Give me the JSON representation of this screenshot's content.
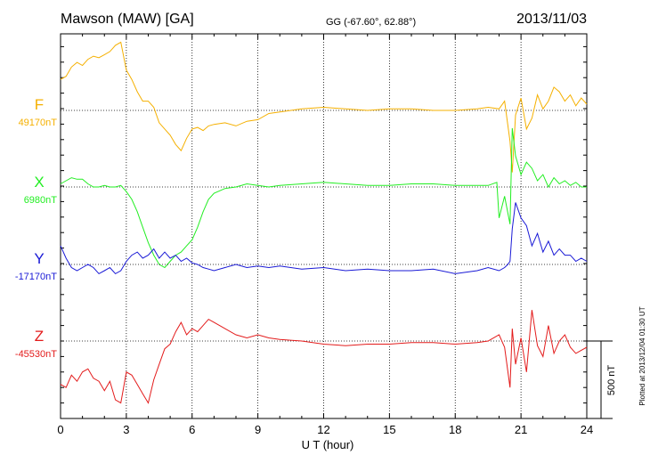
{
  "header": {
    "station": "Mawson (MAW)  [GA]",
    "coords": "GG (-67.60°,  62.88°)",
    "date": "2013/11/03"
  },
  "footer": {
    "plotted": "Plotted at 2013/12/04 01:30 UT",
    "scale_label": "500 nT"
  },
  "chart_data": {
    "type": "line",
    "xlabel": "U T (hour)",
    "xlim": [
      0,
      24
    ],
    "x_ticks": [
      "0",
      "3",
      "6",
      "9",
      "12",
      "15",
      "18",
      "21",
      "24"
    ],
    "grid": true,
    "scale_bar_nT": 500,
    "series": [
      {
        "name": "F",
        "baseline_label": "49170nT",
        "color": "#f5b000",
        "x": [
          0,
          0.25,
          0.5,
          0.75,
          1,
          1.25,
          1.5,
          1.75,
          2,
          2.25,
          2.5,
          2.75,
          3,
          3.25,
          3.5,
          3.75,
          4,
          4.25,
          4.5,
          4.75,
          5,
          5.25,
          5.5,
          5.75,
          6,
          6.25,
          6.5,
          6.75,
          7,
          7.5,
          8,
          8.5,
          9,
          9.5,
          10,
          11,
          12,
          13,
          14,
          15,
          16,
          17,
          18,
          19,
          19.5,
          20,
          20.25,
          20.5,
          20.6,
          20.75,
          21,
          21.25,
          21.5,
          21.75,
          22,
          22.25,
          22.5,
          22.75,
          23,
          23.25,
          23.5,
          23.75,
          24
        ],
        "y": [
          200,
          220,
          280,
          310,
          290,
          330,
          350,
          340,
          360,
          380,
          420,
          440,
          260,
          200,
          120,
          60,
          60,
          20,
          -80,
          -120,
          -160,
          -220,
          -260,
          -180,
          -120,
          -110,
          -130,
          -100,
          -90,
          -80,
          -100,
          -70,
          -60,
          -20,
          -10,
          10,
          20,
          10,
          0,
          10,
          10,
          0,
          0,
          10,
          20,
          10,
          60,
          -200,
          -400,
          -30,
          80,
          -120,
          -50,
          100,
          10,
          60,
          150,
          120,
          60,
          100,
          30,
          80,
          40
        ]
      },
      {
        "name": "X",
        "baseline_label": "6980nT",
        "color": "#22ee22",
        "x": [
          0,
          0.25,
          0.5,
          0.75,
          1,
          1.25,
          1.5,
          1.75,
          2,
          2.25,
          2.5,
          2.75,
          3,
          3.25,
          3.5,
          3.75,
          4,
          4.25,
          4.5,
          4.75,
          5,
          5.25,
          5.5,
          5.75,
          6,
          6.25,
          6.5,
          6.75,
          7,
          7.5,
          8,
          8.5,
          9,
          9.5,
          10,
          11,
          12,
          13,
          14,
          15,
          16,
          17,
          18,
          19,
          19.5,
          19.9,
          20,
          20.25,
          20.5,
          20.6,
          20.75,
          21,
          21.25,
          21.5,
          21.75,
          22,
          22.25,
          22.5,
          22.75,
          23,
          23.25,
          23.5,
          23.75,
          24
        ],
        "y": [
          20,
          40,
          60,
          50,
          50,
          20,
          0,
          0,
          10,
          0,
          0,
          10,
          -30,
          -80,
          -160,
          -260,
          -360,
          -440,
          -500,
          -520,
          -480,
          -440,
          -420,
          -380,
          -340,
          -260,
          -160,
          -80,
          -40,
          -10,
          0,
          20,
          10,
          0,
          10,
          20,
          30,
          20,
          10,
          10,
          20,
          20,
          10,
          10,
          10,
          30,
          -200,
          -60,
          -240,
          380,
          200,
          80,
          160,
          120,
          40,
          80,
          0,
          60,
          20,
          40,
          10,
          30,
          0,
          0
        ]
      },
      {
        "name": "Y",
        "baseline_label": "-17170nT",
        "color": "#1a1ad6",
        "x": [
          0,
          0.25,
          0.5,
          0.75,
          1,
          1.25,
          1.5,
          1.75,
          2,
          2.25,
          2.5,
          2.75,
          3,
          3.25,
          3.5,
          3.75,
          4,
          4.25,
          4.5,
          4.75,
          5,
          5.25,
          5.5,
          5.75,
          6,
          6.25,
          6.5,
          6.75,
          7,
          7.5,
          8,
          8.5,
          9,
          9.5,
          10,
          11,
          12,
          13,
          14,
          15,
          16,
          17,
          18,
          19,
          19.5,
          20,
          20.25,
          20.4,
          20.5,
          20.6,
          20.75,
          21,
          21.25,
          21.5,
          21.75,
          22,
          22.25,
          22.5,
          22.75,
          23,
          23.25,
          23.5,
          23.75,
          24
        ],
        "y": [
          120,
          40,
          -20,
          -40,
          -20,
          0,
          -20,
          -60,
          -40,
          -20,
          -60,
          -40,
          20,
          60,
          80,
          40,
          60,
          100,
          40,
          80,
          40,
          60,
          20,
          40,
          10,
          0,
          -20,
          -30,
          -40,
          -20,
          0,
          -20,
          -10,
          -20,
          -10,
          -30,
          -20,
          -40,
          -30,
          -40,
          -40,
          -30,
          -60,
          -40,
          -20,
          -40,
          -20,
          0,
          20,
          230,
          400,
          300,
          250,
          120,
          200,
          80,
          150,
          60,
          100,
          60,
          60,
          20,
          40,
          20
        ]
      },
      {
        "name": "Z",
        "baseline_label": "-45530nT",
        "color": "#e31b1b",
        "x": [
          0,
          0.25,
          0.5,
          0.75,
          1,
          1.25,
          1.5,
          1.75,
          2,
          2.25,
          2.5,
          2.75,
          3,
          3.25,
          3.5,
          3.75,
          4,
          4.25,
          4.5,
          4.75,
          5,
          5.25,
          5.5,
          5.75,
          6,
          6.25,
          6.5,
          6.75,
          7,
          7.5,
          8,
          8.5,
          9,
          9.5,
          10,
          11,
          12,
          13,
          14,
          15,
          16,
          17,
          18,
          19,
          19.5,
          20,
          20.25,
          20.5,
          20.6,
          20.75,
          21,
          21.25,
          21.5,
          21.75,
          22,
          22.25,
          22.5,
          22.75,
          23,
          23.25,
          23.5,
          23.75,
          24
        ],
        "y": [
          -280,
          -300,
          -220,
          -260,
          -200,
          -180,
          -240,
          -260,
          -320,
          -260,
          -380,
          -400,
          -200,
          -220,
          -280,
          -340,
          -400,
          -250,
          -150,
          -50,
          -20,
          60,
          120,
          40,
          80,
          60,
          100,
          140,
          120,
          80,
          40,
          20,
          40,
          20,
          10,
          0,
          -20,
          -30,
          -20,
          -20,
          -10,
          -10,
          -20,
          -10,
          0,
          40,
          -40,
          -300,
          80,
          -150,
          20,
          -200,
          200,
          -30,
          -100,
          100,
          -80,
          0,
          40,
          -40,
          -80,
          -60,
          -40
        ]
      }
    ]
  }
}
